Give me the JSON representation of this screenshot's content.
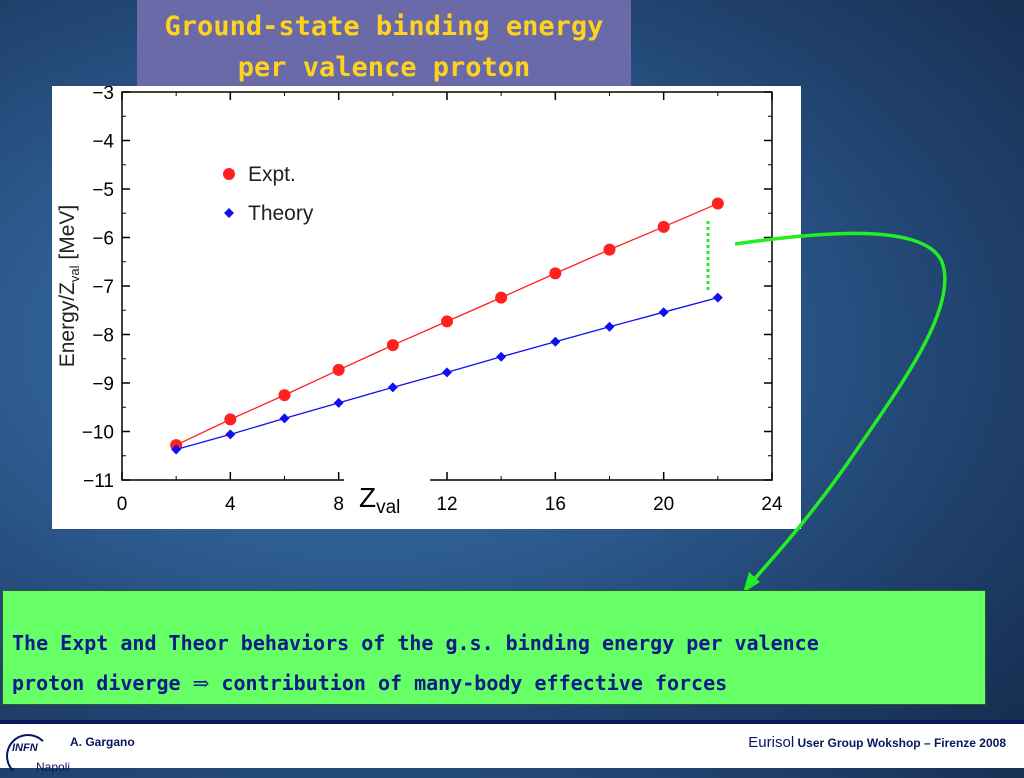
{
  "slide": {
    "title_line1": "Ground-state binding energy",
    "title_line2": "per valence proton",
    "note_line1": "The Expt and Theor behaviors of the g.s. binding energy per valence",
    "note_line2_a": "proton diverge",
    "note_arrow": "⇒",
    "note_line2_b": " contribution of  many-body effective forces",
    "footer_author": "A. Gargano",
    "footer_event_brand": "Eurisol",
    "footer_event_rest": " User Group Wokshop – Firenze  2008",
    "logo_text": "INFN",
    "logo_city": "Napoli"
  },
  "colors": {
    "expt": "#ff2020",
    "theory": "#1010ee",
    "arrow": "#22ee22",
    "title_text": "#ffd21e"
  },
  "chart_data": {
    "type": "line",
    "xlabel_main": "Z",
    "xlabel_sub": "val",
    "ylabel": "Energy/Z",
    "ylabel_sub": "val",
    "ylabel_unit": " [MeV]",
    "xlim": [
      0,
      24
    ],
    "ylim": [
      -11,
      -3
    ],
    "xticks": [
      0,
      4,
      8,
      12,
      16,
      20,
      24
    ],
    "yticks": [
      -11,
      -10,
      -9,
      -8,
      -7,
      -6,
      -5,
      -4,
      -3
    ],
    "legend_position": "top-left",
    "series": [
      {
        "name": "Expt.",
        "marker": "circle",
        "x": [
          2,
          4,
          6,
          8,
          10,
          12,
          14,
          16,
          18,
          20,
          22
        ],
        "y": [
          -10.28,
          -9.75,
          -9.25,
          -8.73,
          -8.22,
          -7.73,
          -7.24,
          -6.74,
          -6.25,
          -5.78,
          -5.3
        ]
      },
      {
        "name": "Theory",
        "marker": "diamond",
        "x": [
          2,
          4,
          6,
          8,
          10,
          12,
          14,
          16,
          18,
          20,
          22
        ],
        "y": [
          -10.37,
          -10.06,
          -9.73,
          -9.41,
          -9.09,
          -8.78,
          -8.46,
          -8.15,
          -7.84,
          -7.54,
          -7.24
        ]
      }
    ]
  }
}
